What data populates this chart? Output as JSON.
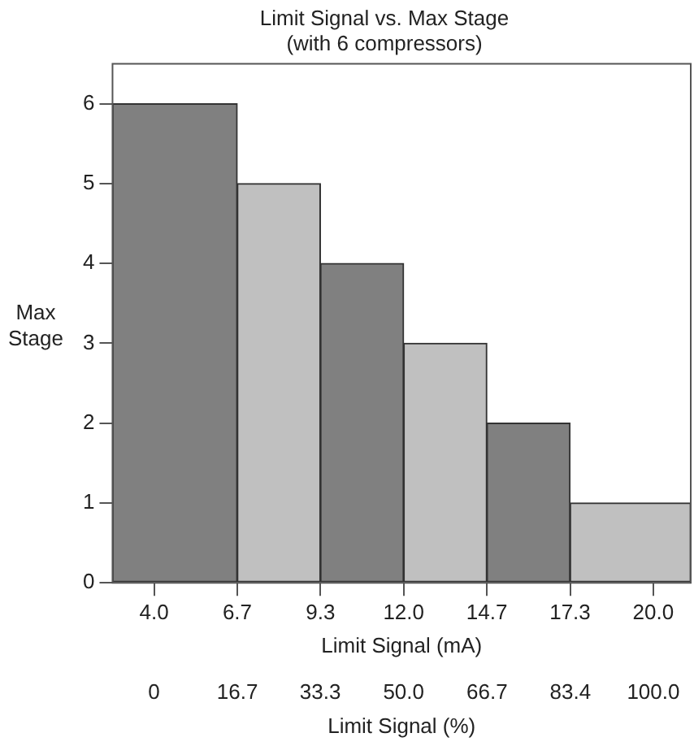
{
  "chart_data": {
    "type": "histogram",
    "title": "Limit Signal vs. Max Stage",
    "subtitle": "(with 6 compressors)",
    "xlabel": "Limit Signal (mA)",
    "x2label": "Limit Signal (%)",
    "ylabel": "Max Stage",
    "bins": [
      2.67,
      6.667,
      9.333,
      12,
      14.667,
      17.333,
      21.2
    ],
    "values": [
      6,
      5,
      4,
      3,
      2,
      1
    ],
    "colors": [
      "#808080",
      "#c0c0c0",
      "#808080",
      "#c0c0c0",
      "#808080",
      "#c0c0c0"
    ],
    "xlim": [
      2.67,
      21.2
    ],
    "xticks": [
      {
        "value": 4,
        "label": "4.0"
      },
      {
        "value": 6.667,
        "label": "6.7"
      },
      {
        "value": 9.333,
        "label": "9.3"
      },
      {
        "value": 12,
        "label": "12.0"
      },
      {
        "value": 14.667,
        "label": "14.7"
      },
      {
        "value": 17.333,
        "label": "17.3"
      },
      {
        "value": 20,
        "label": "20.0"
      }
    ],
    "x2lim": [
      -8.3,
      107.5
    ],
    "x2ticks": [
      0,
      16.7,
      33.3,
      {
        "value": 50,
        "label": "50.0"
      },
      66.7,
      83.4,
      {
        "value": 100,
        "label": "100.0"
      }
    ],
    "ylim": [
      0,
      6.5
    ],
    "yticks": [
      0,
      1,
      2,
      3,
      4,
      5,
      6
    ],
    "grid": false,
    "legend": false
  }
}
